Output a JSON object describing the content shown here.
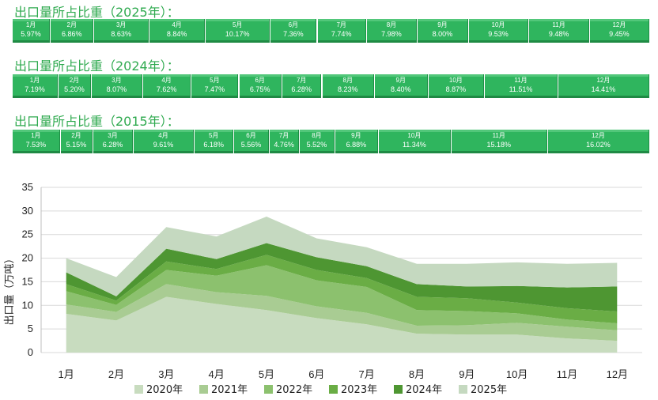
{
  "sections": [
    {
      "title": "出口量所占比重（2025年）：",
      "cells": [
        {
          "month": "1月",
          "value": "5.97%",
          "share": 5.97
        },
        {
          "month": "2月",
          "value": "6.86%",
          "share": 6.86
        },
        {
          "month": "3月",
          "value": "8.63%",
          "share": 8.63
        },
        {
          "month": "4月",
          "value": "8.84%",
          "share": 8.84
        },
        {
          "month": "5月",
          "value": "10.17%",
          "share": 10.17
        },
        {
          "month": "6月",
          "value": "7.36%",
          "share": 7.36
        },
        {
          "month": "7月",
          "value": "7.74%",
          "share": 7.74
        },
        {
          "month": "8月",
          "value": "7.98%",
          "share": 7.98
        },
        {
          "month": "9月",
          "value": "8.00%",
          "share": 8.0
        },
        {
          "month": "10月",
          "value": "9.53%",
          "share": 9.53
        },
        {
          "month": "11月",
          "value": "9.48%",
          "share": 9.48
        },
        {
          "month": "12月",
          "value": "9.45%",
          "share": 9.45
        }
      ]
    },
    {
      "title": "出口量所占比重（2024年）：",
      "cells": [
        {
          "month": "1月",
          "value": "7.19%",
          "share": 7.19
        },
        {
          "month": "2月",
          "value": "5.20%",
          "share": 5.2
        },
        {
          "month": "3月",
          "value": "8.07%",
          "share": 8.07
        },
        {
          "month": "4月",
          "value": "7.62%",
          "share": 7.62
        },
        {
          "month": "5月",
          "value": "7.47%",
          "share": 7.47
        },
        {
          "month": "6月",
          "value": "6.75%",
          "share": 6.75
        },
        {
          "month": "7月",
          "value": "6.28%",
          "share": 6.28
        },
        {
          "month": "8月",
          "value": "8.23%",
          "share": 8.23
        },
        {
          "month": "9月",
          "value": "8.40%",
          "share": 8.4
        },
        {
          "month": "10月",
          "value": "8.87%",
          "share": 8.87
        },
        {
          "month": "11月",
          "value": "11.51%",
          "share": 11.51
        },
        {
          "month": "12月",
          "value": "14.41%",
          "share": 14.41
        }
      ]
    },
    {
      "title": "出口量所占比重（2015年）：",
      "cells": [
        {
          "month": "1月",
          "value": "7.53%",
          "share": 7.53
        },
        {
          "month": "2月",
          "value": "5.15%",
          "share": 5.15
        },
        {
          "month": "3月",
          "value": "6.28%",
          "share": 6.28
        },
        {
          "month": "4月",
          "value": "9.61%",
          "share": 9.61
        },
        {
          "month": "5月",
          "value": "6.18%",
          "share": 6.18
        },
        {
          "month": "6月",
          "value": "5.56%",
          "share": 5.56
        },
        {
          "month": "7月",
          "value": "4.76%",
          "share": 4.76
        },
        {
          "month": "8月",
          "value": "5.52%",
          "share": 5.52
        },
        {
          "month": "9月",
          "value": "6.88%",
          "share": 6.88
        },
        {
          "month": "10月",
          "value": "11.34%",
          "share": 11.34
        },
        {
          "month": "11月",
          "value": "15.18%",
          "share": 15.18
        },
        {
          "month": "12月",
          "value": "16.02%",
          "share": 16.02
        }
      ]
    }
  ],
  "chart_data": {
    "type": "area",
    "stacked": true,
    "categories": [
      "1月",
      "2月",
      "3月",
      "4月",
      "5月",
      "6月",
      "7月",
      "8月",
      "9月",
      "10月",
      "11月",
      "12月"
    ],
    "ylabel": "出口量（万吨）",
    "ylim": [
      0,
      35
    ],
    "yticks": [
      0,
      5,
      10,
      15,
      20,
      25,
      30,
      35
    ],
    "grid": true,
    "legend_position": "bottom",
    "series": [
      {
        "name": "2020年",
        "color": "#c8dcbf",
        "values": [
          8.2,
          6.8,
          11.8,
          10.3,
          9.0,
          7.3,
          6.0,
          4.0,
          3.8,
          3.8,
          3.0,
          2.5
        ]
      },
      {
        "name": "2021年",
        "color": "#a9cc93",
        "values": [
          2.0,
          1.8,
          2.7,
          2.5,
          3.0,
          2.5,
          2.4,
          1.7,
          2.0,
          2.5,
          2.5,
          2.2
        ]
      },
      {
        "name": "2022年",
        "color": "#8cc16e",
        "values": [
          2.8,
          1.5,
          3.0,
          3.5,
          6.5,
          5.5,
          5.5,
          3.3,
          3.0,
          2.0,
          1.5,
          1.5
        ]
      },
      {
        "name": "2023年",
        "color": "#6aad45",
        "values": [
          1.5,
          0.9,
          1.8,
          1.4,
          2.2,
          2.2,
          1.9,
          2.8,
          2.7,
          2.3,
          2.4,
          2.5
        ]
      },
      {
        "name": "2024年",
        "color": "#4e9632",
        "values": [
          2.5,
          0.9,
          2.7,
          2.1,
          2.5,
          2.7,
          2.5,
          2.7,
          2.5,
          3.5,
          4.4,
          5.3
        ]
      },
      {
        "name": "2025年",
        "color": "#c5d9c0",
        "values": [
          3.0,
          4.1,
          4.6,
          4.8,
          5.6,
          4.0,
          4.0,
          4.3,
          4.8,
          5.0,
          5.0,
          5.0
        ]
      }
    ]
  }
}
